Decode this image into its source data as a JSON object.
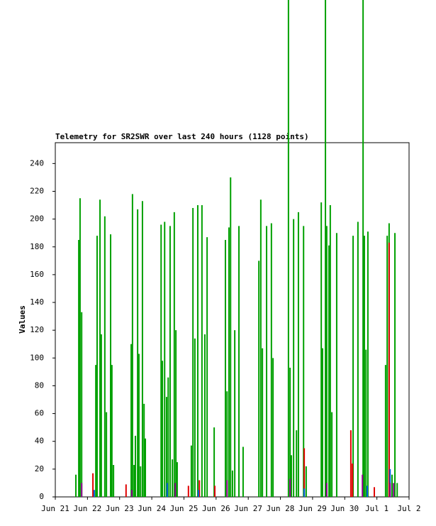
{
  "chart_data": {
    "type": "impulse",
    "title": "Telemetry for SR2SWR over last 240 hours (1128 points)",
    "y_label": "Values",
    "xlim": [
      0,
      11
    ],
    "ylim": [
      0,
      255
    ],
    "xticks": [
      {
        "value": 0,
        "label": "Jun 21"
      },
      {
        "value": 1,
        "label": "Jun 22"
      },
      {
        "value": 2,
        "label": "Jun 23"
      },
      {
        "value": 3,
        "label": "Jun 24"
      },
      {
        "value": 4,
        "label": "Jun 25"
      },
      {
        "value": 5,
        "label": "Jun 26"
      },
      {
        "value": 6,
        "label": "Jun 27"
      },
      {
        "value": 7,
        "label": "Jun 28"
      },
      {
        "value": 8,
        "label": "Jun 29"
      },
      {
        "value": 9,
        "label": "Jun 30"
      },
      {
        "value": 10,
        "label": "Jul 1"
      },
      {
        "value": 11,
        "label": "Jul 2"
      }
    ],
    "yticks": [
      0,
      20,
      40,
      60,
      80,
      100,
      120,
      140,
      160,
      180,
      200,
      220,
      240
    ],
    "series": [
      {
        "color": "#00a000",
        "x": [
          0.64,
          0.73,
          0.77,
          0.82,
          1.26,
          1.3,
          1.39,
          1.43,
          1.54,
          1.59,
          1.72,
          1.76,
          1.81,
          2.36,
          2.4,
          2.45,
          2.49,
          2.56,
          2.6,
          2.65,
          2.71,
          2.76,
          2.8,
          3.29,
          3.33,
          3.4,
          3.46,
          3.51,
          3.57,
          3.64,
          3.7,
          3.75,
          3.79,
          4.23,
          4.28,
          4.34,
          4.43,
          4.56,
          4.65,
          4.72,
          4.94,
          5.29,
          5.34,
          5.4,
          5.45,
          5.51,
          5.58,
          5.71,
          5.84,
          6.33,
          6.39,
          6.44,
          6.57,
          6.72,
          6.77,
          7.25,
          7.3,
          7.34,
          7.41,
          7.5,
          7.56,
          7.72,
          7.8,
          8.27,
          8.31,
          8.4,
          8.44,
          8.51,
          8.55,
          8.6,
          8.75,
          9.26,
          9.41,
          9.57,
          9.61,
          9.66,
          9.72,
          10.27,
          10.32,
          10.38,
          10.47,
          10.56,
          10.63
        ],
        "values": [
          16,
          185,
          215,
          133,
          95,
          188,
          214,
          117,
          202,
          61,
          189,
          95,
          23,
          110,
          218,
          23,
          44,
          207,
          103,
          22,
          213,
          67,
          42,
          196,
          98,
          198,
          72,
          86,
          195,
          27,
          205,
          120,
          25,
          37,
          208,
          114,
          210,
          210,
          117,
          187,
          50,
          185,
          76,
          194,
          230,
          19,
          120,
          195,
          36,
          170,
          214,
          107,
          195,
          197,
          100,
          360,
          93,
          30,
          200,
          48,
          205,
          195,
          22,
          212,
          107,
          360,
          195,
          181,
          210,
          61,
          190,
          188,
          198,
          360,
          188,
          106,
          191,
          95,
          188,
          197,
          16,
          190,
          10
        ]
      },
      {
        "color": "#e00000",
        "x": [
          1.17,
          2.2,
          4.14,
          4.48,
          4.96,
          7.74,
          9.19,
          9.24,
          9.92,
          10.38
        ],
        "values": [
          17,
          9,
          8,
          12,
          8,
          35,
          48,
          24,
          7,
          183
        ]
      },
      {
        "color": "#0060e0",
        "x": [
          1.21,
          3.48,
          4.45,
          7.74,
          9.7,
          10.41
        ],
        "values": [
          5,
          10,
          5,
          6,
          8,
          20
        ]
      },
      {
        "color": "#900090",
        "x": [
          0.82,
          2.38,
          3.73,
          5.34,
          7.3,
          8.44,
          9.55,
          10.41,
          10.52
        ],
        "values": [
          10,
          5,
          10,
          12,
          13,
          10,
          16,
          10,
          10
        ]
      }
    ]
  }
}
